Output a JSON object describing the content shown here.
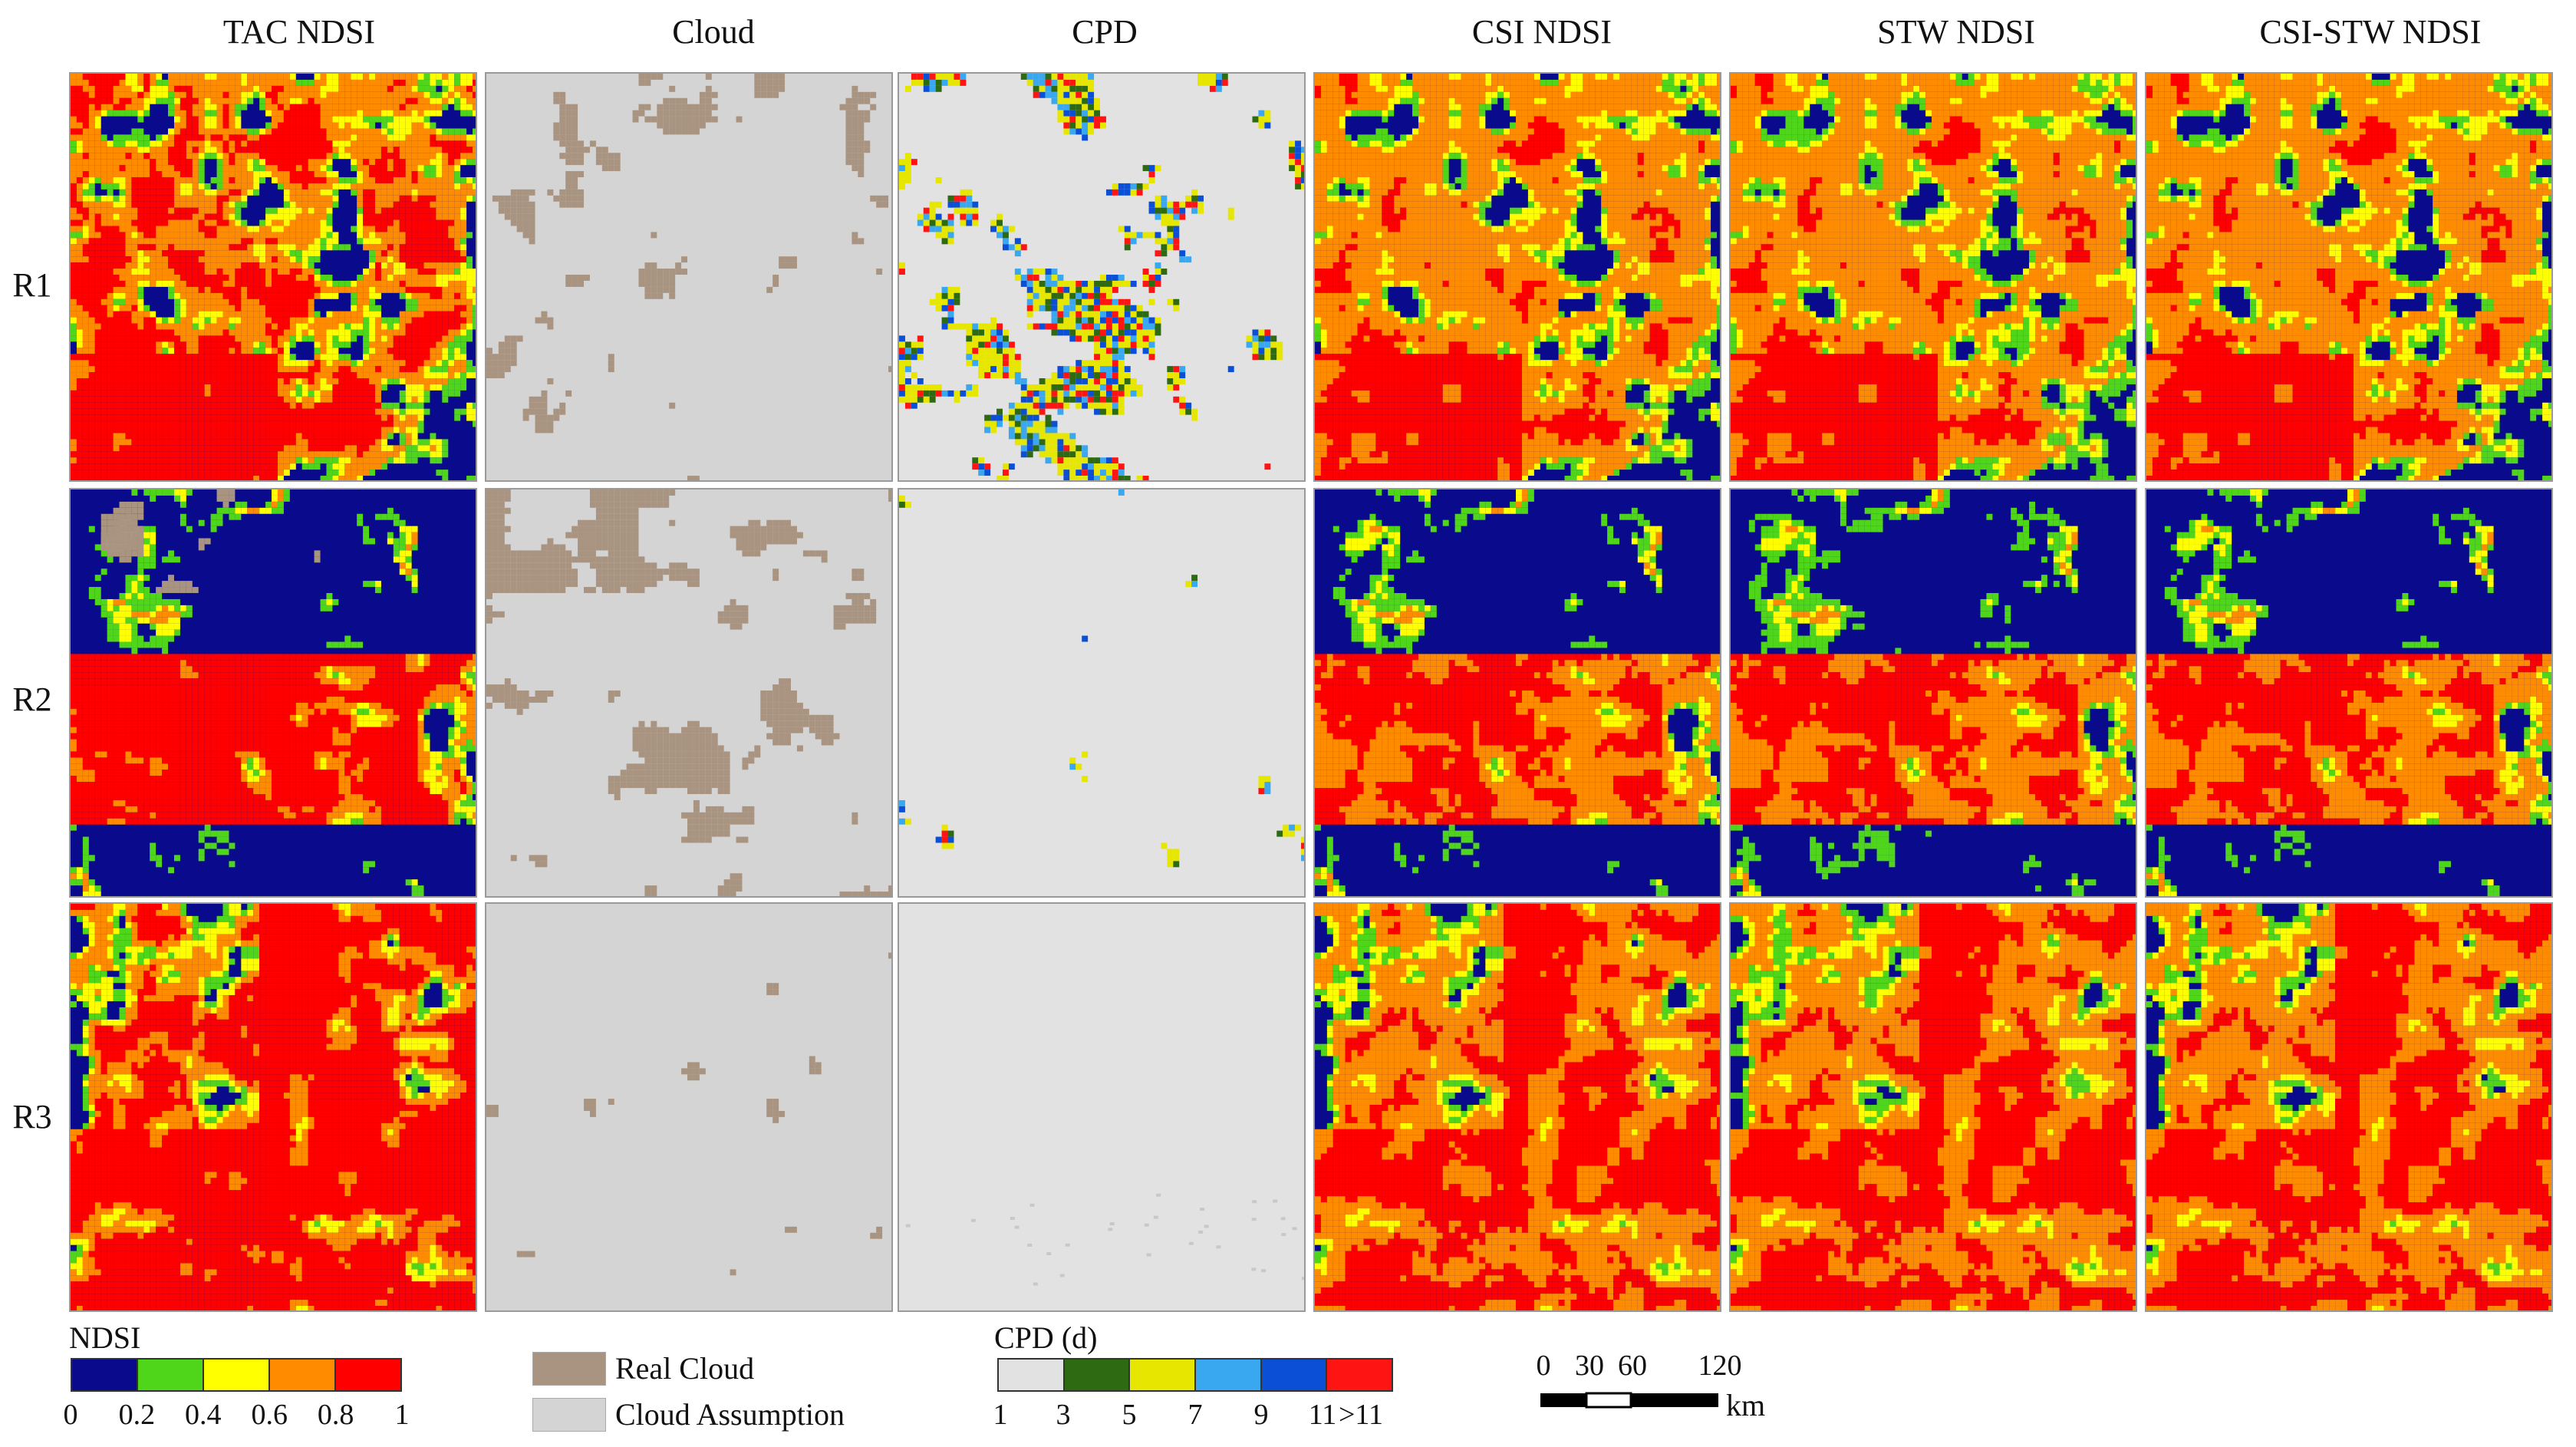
{
  "columns": [
    "TAC NDSI",
    "Cloud",
    "CPD",
    "CSI NDSI",
    "STW NDSI",
    "CSI-STW  NDSI"
  ],
  "rows": [
    "R1",
    "R2",
    "R3"
  ],
  "colors": {
    "water": "#0a0a8c",
    "ndsi_02": "#4fd61a",
    "ndsi_04": "#ffff00",
    "ndsi_06": "#ff8c00",
    "ndsi_08": "#ff0000",
    "cloud_real": "#a89480",
    "cloud_assumption": "#d4d4d4",
    "cpd_1": "#e2e2e2",
    "cpd_3": "#2e6a12",
    "cpd_5": "#e6e600",
    "cpd_7": "#3aa8f0",
    "cpd_9": "#0a4fd6",
    "cpd_11": "#ff1414"
  },
  "legend_ndsi": {
    "title": "NDSI",
    "ticks": [
      "0",
      "0.2",
      "0.4",
      "0.6",
      "0.8",
      "1"
    ],
    "swatches": [
      "#0a0a8c",
      "#4fd61a",
      "#ffff00",
      "#ff8c00",
      "#ff0000"
    ]
  },
  "legend_cloud": {
    "items": [
      {
        "label": "Real Cloud",
        "color": "#a89480"
      },
      {
        "label": "Cloud Assumption",
        "color": "#d4d4d4"
      }
    ]
  },
  "legend_cpd": {
    "title": "CPD (d)",
    "ticks": [
      "1",
      "3",
      "5",
      "7",
      "9",
      "11",
      ">11"
    ],
    "swatches": [
      "#e2e2e2",
      "#2e6a12",
      "#e6e600",
      "#3aa8f0",
      "#0a4fd6",
      "#ff1414"
    ]
  },
  "scalebar": {
    "ticks": [
      "0",
      "30",
      "60",
      "120"
    ],
    "unit": "km"
  }
}
